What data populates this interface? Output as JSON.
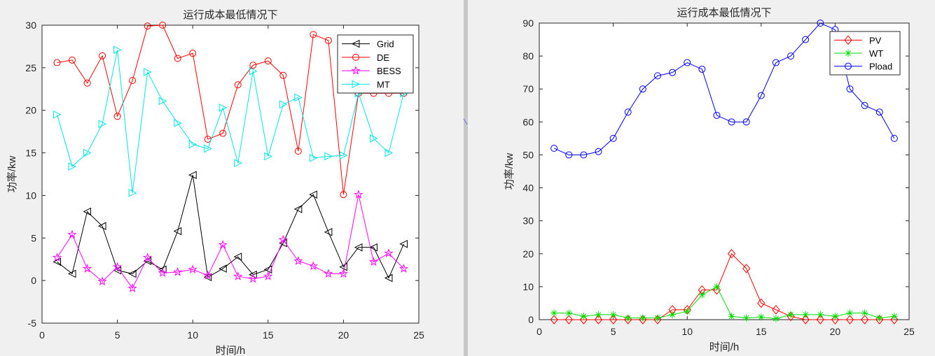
{
  "chart_data": [
    {
      "type": "line",
      "title": "运行成本最低情况下",
      "xlabel": "时间/h",
      "ylabel": "功率/kw",
      "xlim": [
        0,
        25
      ],
      "ylim": [
        -5,
        30
      ],
      "xticks": [
        0,
        5,
        10,
        15,
        20,
        25
      ],
      "yticks": [
        -5,
        0,
        5,
        10,
        15,
        20,
        25,
        30
      ],
      "grid": false,
      "legend_position": "top-right",
      "x": [
        1,
        2,
        3,
        4,
        5,
        6,
        7,
        8,
        9,
        10,
        11,
        12,
        13,
        14,
        15,
        16,
        17,
        18,
        19,
        20,
        21,
        22,
        23,
        24
      ],
      "series": [
        {
          "name": "Grid",
          "color": "#000000",
          "marker": "triangle-left",
          "values": [
            2.2,
            0.8,
            8.1,
            6.4,
            1.2,
            0.8,
            2.3,
            1.3,
            5.8,
            12.4,
            0.4,
            1.4,
            2.8,
            0.7,
            1.3,
            4.4,
            8.4,
            10.1,
            5.7,
            1.6,
            3.9,
            3.9,
            0.3,
            4.3
          ]
        },
        {
          "name": "DE",
          "color": "#ff0000",
          "marker": "circle",
          "values": [
            25.6,
            25.9,
            23.2,
            26.4,
            19.3,
            23.5,
            29.9,
            30.0,
            26.1,
            26.7,
            16.6,
            17.3,
            23.0,
            25.3,
            25.8,
            24.1,
            15.2,
            28.9,
            28.2,
            10.1,
            22.0,
            22.0,
            22.0,
            22.0
          ]
        },
        {
          "name": "BESS",
          "color": "#ff00ff",
          "marker": "star",
          "values": [
            2.7,
            5.4,
            1.4,
            -0.1,
            1.6,
            -0.9,
            2.7,
            0.9,
            1.0,
            1.3,
            0.6,
            4.2,
            0.5,
            0.2,
            0.5,
            4.8,
            2.3,
            1.7,
            0.8,
            0.8,
            10.1,
            2.2,
            3.2,
            1.4
          ]
        },
        {
          "name": "MT",
          "color": "#00e5e5",
          "marker": "triangle-right",
          "values": [
            19.5,
            13.4,
            15.0,
            18.4,
            27.1,
            10.3,
            24.5,
            21.1,
            18.5,
            16.0,
            15.5,
            20.3,
            13.8,
            24.6,
            14.6,
            20.7,
            21.5,
            14.4,
            14.6,
            14.7,
            22.0,
            16.7,
            15.0,
            22.0
          ]
        }
      ]
    },
    {
      "type": "line",
      "title": "运行成本最低情况下",
      "xlabel": "时间/h",
      "ylabel": "功率/kw",
      "xlim": [
        0,
        25
      ],
      "ylim": [
        0,
        90
      ],
      "xticks": [
        0,
        5,
        10,
        15,
        20,
        25
      ],
      "yticks": [
        0,
        10,
        20,
        30,
        40,
        50,
        60,
        70,
        80,
        90
      ],
      "grid": false,
      "legend_position": "top-right",
      "x": [
        1,
        2,
        3,
        4,
        5,
        6,
        7,
        8,
        9,
        10,
        11,
        12,
        13,
        14,
        15,
        16,
        17,
        18,
        19,
        20,
        21,
        22,
        23,
        24
      ],
      "series": [
        {
          "name": "PV",
          "color": "#ff0000",
          "marker": "diamond",
          "values": [
            0,
            0,
            0,
            0,
            0,
            0,
            0,
            0,
            3,
            3,
            9,
            9,
            20,
            15.5,
            5,
            3,
            1,
            0,
            0,
            0,
            0,
            0,
            0,
            0
          ]
        },
        {
          "name": "WT",
          "color": "#00dd00",
          "marker": "asterisk",
          "values": [
            2,
            2,
            1,
            1.5,
            1.5,
            0.5,
            0.5,
            0.5,
            1.5,
            2.5,
            7.5,
            10,
            1,
            0.5,
            0.8,
            0.3,
            1.5,
            1.5,
            1.5,
            1,
            2,
            2,
            0.5,
            1
          ]
        },
        {
          "name": "Pload",
          "color": "#0000ff",
          "marker": "circle",
          "values": [
            52,
            50,
            50,
            51,
            55,
            63,
            70,
            74,
            75,
            78,
            76,
            62,
            60,
            60,
            68,
            78,
            80,
            85,
            90,
            88,
            70,
            65,
            63,
            55
          ]
        }
      ]
    }
  ]
}
